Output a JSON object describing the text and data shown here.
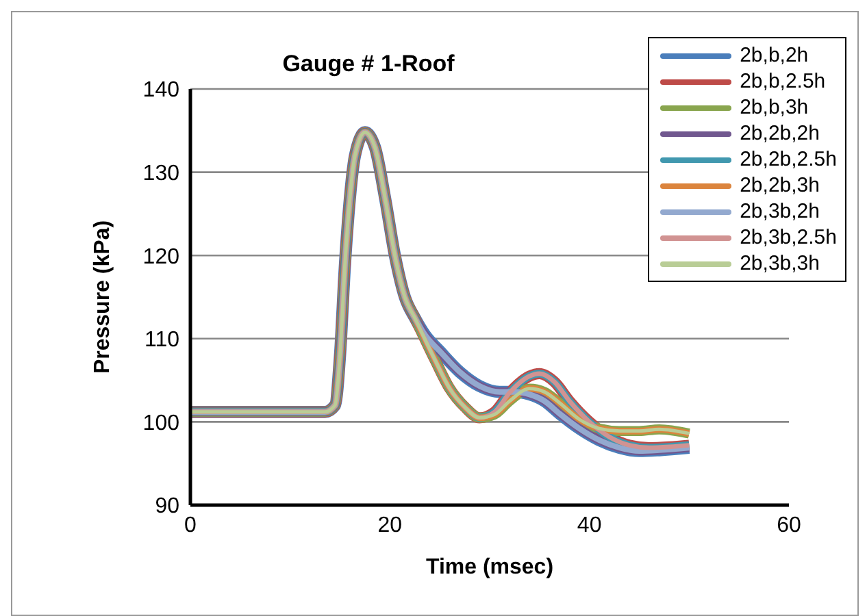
{
  "chart_data": {
    "type": "line",
    "title": "Gauge # 1-Roof",
    "xlabel": "Time (msec)",
    "ylabel": "Pressure (kPa)",
    "xlim": [
      0,
      60
    ],
    "xticks": [
      0,
      20,
      40,
      60
    ],
    "ylim": [
      90,
      140
    ],
    "yticks": [
      90,
      100,
      110,
      120,
      130,
      140
    ],
    "grid": "y",
    "legend": "top right",
    "marker": "none",
    "line_style": "solid",
    "series": [
      {
        "name": "2b,b,2h",
        "color": "#4a7ebb",
        "x": [
          0,
          13.5,
          14.5,
          15,
          15.5,
          16,
          16.5,
          17.5,
          18.5,
          19.5,
          20.5,
          21.5,
          22.5,
          23.5,
          25,
          27,
          29,
          31,
          32.5,
          34,
          35.5,
          37,
          39,
          41,
          43,
          45,
          47,
          50
        ],
        "values": [
          101.2,
          101.2,
          102,
          108,
          119,
          127,
          132,
          134.8,
          133,
          127,
          120,
          115,
          112.5,
          110.5,
          108.5,
          106,
          104.3,
          103.6,
          103.6,
          103.3,
          102.5,
          101,
          99.2,
          97.8,
          96.9,
          96.5,
          96.6,
          96.9
        ]
      },
      {
        "name": "2b,b,2.5h",
        "color": "#be4b48",
        "x": [
          0,
          13.5,
          14.5,
          15,
          15.5,
          16,
          16.5,
          17.5,
          18.5,
          19.5,
          20.5,
          21.5,
          22.5,
          24.5,
          26,
          27.5,
          29,
          30.5,
          32,
          34,
          35,
          36.5,
          38,
          40,
          42,
          44,
          46,
          48,
          50
        ],
        "values": [
          101.2,
          101.2,
          102,
          108,
          119,
          127,
          132,
          134.8,
          133,
          127,
          120,
          115,
          112.5,
          107.5,
          104,
          101.8,
          100.5,
          101.2,
          103.5,
          105.5,
          105.8,
          104.8,
          102.5,
          100,
          98.2,
          97.2,
          96.9,
          97,
          97.2
        ]
      },
      {
        "name": "2b,b,3h",
        "color": "#89a54e",
        "x": [
          0,
          13.5,
          14.5,
          15,
          15.5,
          16,
          16.5,
          17.5,
          18.5,
          19.5,
          20.5,
          21.5,
          22.5,
          24.5,
          26,
          27.5,
          29,
          30.5,
          32,
          34,
          35.5,
          37,
          39,
          41,
          43,
          45,
          47,
          50
        ],
        "values": [
          101.2,
          101.2,
          102,
          108,
          119,
          127,
          132,
          134.8,
          133,
          127,
          120,
          115,
          112.5,
          107.5,
          104,
          101.8,
          100.5,
          100.9,
          102.5,
          104,
          103.6,
          102.3,
          100.3,
          99.2,
          98.9,
          98.9,
          99.1,
          98.6
        ]
      },
      {
        "name": "2b,2b,2h",
        "color": "#71588f",
        "x": [
          0,
          13.5,
          14.5,
          15,
          15.5,
          16,
          16.5,
          17.5,
          18.5,
          19.5,
          20.5,
          21.5,
          22.5,
          23.5,
          25,
          27,
          29,
          31,
          32.5,
          34,
          35.5,
          37,
          39,
          41,
          43,
          45,
          47,
          50
        ],
        "values": [
          101.2,
          101.2,
          102,
          108,
          119,
          127,
          132,
          134.8,
          133,
          127,
          120,
          115,
          112.5,
          110.5,
          108.5,
          106,
          104.3,
          103.6,
          103.6,
          103.3,
          102.5,
          101,
          99.2,
          97.8,
          96.9,
          96.5,
          96.6,
          96.9
        ]
      },
      {
        "name": "2b,2b,2.5h",
        "color": "#4198af",
        "x": [
          0,
          13.5,
          14.5,
          15,
          15.5,
          16,
          16.5,
          17.5,
          18.5,
          19.5,
          20.5,
          21.5,
          22.5,
          24.5,
          26,
          27.5,
          29,
          30.5,
          32,
          34,
          35,
          36.5,
          38,
          40,
          42,
          44,
          46,
          48,
          50
        ],
        "values": [
          101.2,
          101.2,
          102,
          108,
          119,
          127,
          132,
          134.8,
          133,
          127,
          120,
          115,
          112.5,
          107.5,
          104,
          101.8,
          100.5,
          101.2,
          103.5,
          105.5,
          105.8,
          104.8,
          102.5,
          100,
          98.2,
          97.2,
          96.9,
          97,
          97.2
        ]
      },
      {
        "name": "2b,2b,3h",
        "color": "#db843d",
        "x": [
          0,
          13.5,
          14.5,
          15,
          15.5,
          16,
          16.5,
          17.5,
          18.5,
          19.5,
          20.5,
          21.5,
          22.5,
          24.5,
          26,
          27.5,
          29,
          30.5,
          32,
          34,
          35.5,
          37,
          39,
          41,
          43,
          45,
          47,
          50
        ],
        "values": [
          101.2,
          101.2,
          102,
          108,
          119,
          127,
          132,
          134.8,
          133,
          127,
          120,
          115,
          112.5,
          107.5,
          104,
          101.8,
          100.5,
          100.9,
          102.5,
          104,
          103.6,
          102.3,
          100.3,
          99.2,
          98.9,
          98.9,
          99.1,
          98.6
        ]
      },
      {
        "name": "2b,3b,2h",
        "color": "#93a9cf",
        "x": [
          0,
          13.5,
          14.5,
          15,
          15.5,
          16,
          16.5,
          17.5,
          18.5,
          19.5,
          20.5,
          21.5,
          22.5,
          23.5,
          25,
          27,
          29,
          31,
          32.5,
          34,
          35.5,
          37,
          39,
          41,
          43,
          45,
          47,
          50
        ],
        "values": [
          101.2,
          101.2,
          102,
          108,
          119,
          127,
          132,
          134.8,
          133,
          127,
          120,
          115,
          112.5,
          110.5,
          108.5,
          106,
          104.3,
          103.6,
          103.6,
          103.3,
          102.5,
          101,
          99.2,
          97.8,
          96.9,
          96.5,
          96.6,
          96.9
        ]
      },
      {
        "name": "2b,3b,2.5h",
        "color": "#d19392",
        "x": [
          0,
          13.5,
          14.5,
          15,
          15.5,
          16,
          16.5,
          17.5,
          18.5,
          19.5,
          20.5,
          21.5,
          22.5,
          24.5,
          26,
          27.5,
          29,
          30.5,
          32,
          34,
          35,
          36.5,
          38,
          40,
          42,
          44,
          46,
          48,
          50
        ],
        "values": [
          101.2,
          101.2,
          102,
          108,
          119,
          127,
          132,
          134.8,
          133,
          127,
          120,
          115,
          112.5,
          107.5,
          104,
          101.8,
          100.5,
          101.2,
          103.5,
          105.5,
          105.8,
          104.8,
          102.5,
          100,
          98.2,
          97.2,
          96.9,
          97,
          97.2
        ]
      },
      {
        "name": "2b,3b,3h",
        "color": "#b9cd96",
        "x": [
          0,
          13.5,
          14.5,
          15,
          15.5,
          16,
          16.5,
          17.5,
          18.5,
          19.5,
          20.5,
          21.5,
          22.5,
          24.5,
          26,
          27.5,
          29,
          30.5,
          32,
          34,
          35.5,
          37,
          39,
          41,
          43,
          45,
          47,
          50
        ],
        "values": [
          101.2,
          101.2,
          102,
          108,
          119,
          127,
          132,
          134.8,
          133,
          127,
          120,
          115,
          112.5,
          107.5,
          104,
          101.8,
          100.5,
          100.9,
          102.5,
          104,
          103.6,
          102.3,
          100.3,
          99.2,
          98.9,
          98.9,
          99.1,
          98.6
        ]
      }
    ]
  }
}
